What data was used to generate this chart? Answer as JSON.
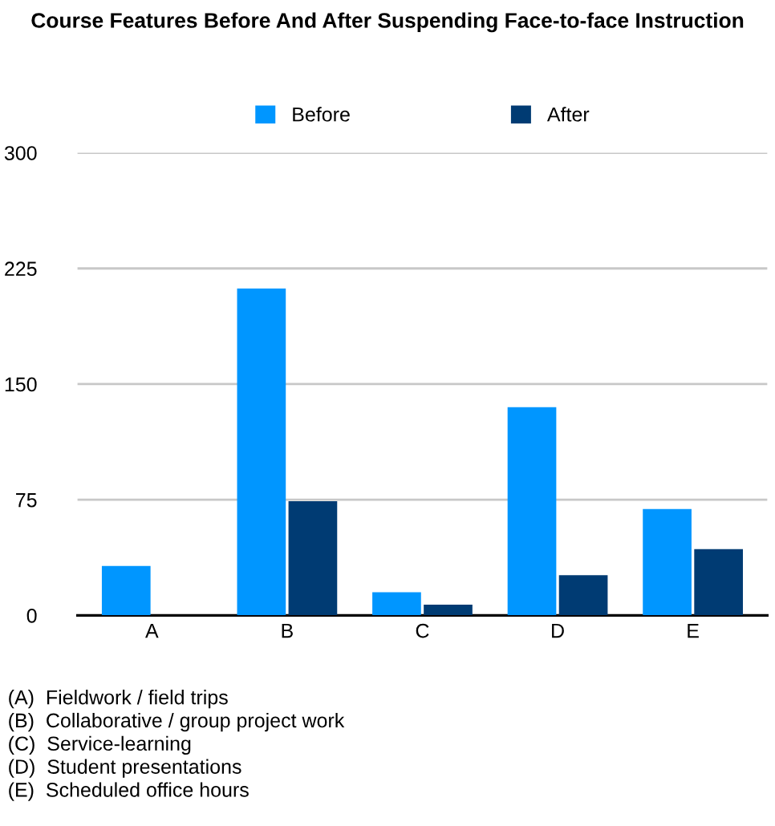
{
  "chart_data": {
    "type": "bar",
    "title": "Course Features Before And After Suspending Face-to-face Instruction",
    "categories": [
      "A",
      "B",
      "C",
      "D",
      "E"
    ],
    "series": [
      {
        "name": "Before",
        "color": "#0096ff",
        "values": [
          32,
          212,
          15,
          135,
          69
        ]
      },
      {
        "name": "After",
        "color": "#003b73",
        "values": [
          0,
          74,
          7,
          26,
          43
        ]
      }
    ],
    "ylim": [
      0,
      300
    ],
    "yticks": [
      0,
      75,
      150,
      225,
      300
    ],
    "grid": "y",
    "legend": "top",
    "annotations": [
      "(A)  Fieldwork / field trips",
      "(B)  Collaborative / group project work",
      "(C)  Service-learning",
      "(D)  Student presentations",
      "(E)  Scheduled office hours"
    ]
  }
}
